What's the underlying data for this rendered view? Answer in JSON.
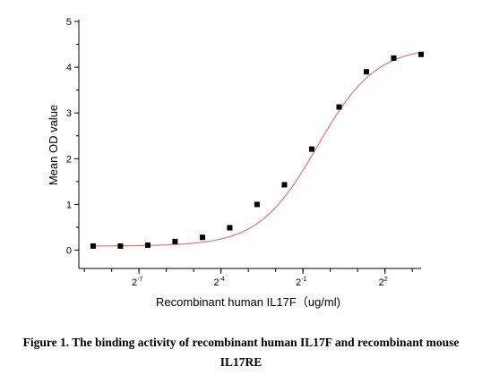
{
  "chart_data": {
    "type": "scatter",
    "xlabel": "Recombinant human IL17F（ug/ml)",
    "ylabel": "Mean OD value",
    "x_scale": "log2",
    "xlim": [
      0.0017,
      10
    ],
    "ylim": [
      -0.4,
      5
    ],
    "yticks": [
      0,
      1,
      2,
      3,
      4,
      5
    ],
    "xticks": [
      {
        "base": "2",
        "exp": "-7",
        "value": 0.0078125
      },
      {
        "base": "2",
        "exp": "-4",
        "value": 0.0625
      },
      {
        "base": "2",
        "exp": "-1",
        "value": 0.5
      },
      {
        "base": "2",
        "exp": "2",
        "value": 4
      }
    ],
    "grid": false,
    "legend": "none",
    "series": [
      {
        "x": [
          0.00244,
          0.00488,
          0.00977,
          0.0195,
          0.0391,
          0.0781,
          0.156,
          0.3125,
          0.625,
          1.25,
          2.5,
          5,
          10
        ],
        "y": [
          0.09,
          0.09,
          0.11,
          0.19,
          0.28,
          0.49,
          1.0,
          1.43,
          2.21,
          3.13,
          3.9,
          4.2,
          4.28
        ],
        "color": "#000000",
        "marker": "square"
      }
    ],
    "fit_curve": {
      "type": "4PL",
      "bottom": 0.09,
      "top": 4.45,
      "ec50": 0.72,
      "hill": 1.35,
      "color": "#e8736e"
    },
    "caption_lines": [
      "Figure 1. The binding activity of recombinant human IL17F and recombinant mouse",
      "IL17RE"
    ]
  }
}
